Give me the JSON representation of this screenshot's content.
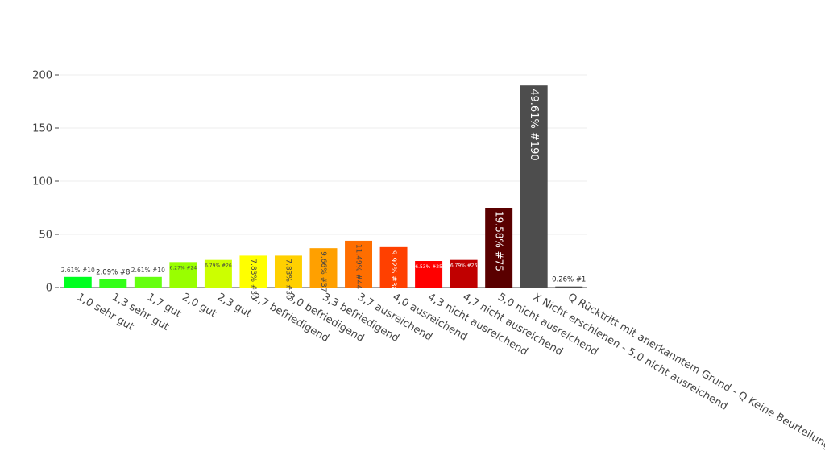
{
  "chart_data": {
    "type": "bar",
    "title": "",
    "xlabel": "",
    "ylabel": "",
    "ylim": [
      0,
      200
    ],
    "yticks": [
      0,
      50,
      100,
      150,
      200
    ],
    "grid": true,
    "legend": "none",
    "categories": [
      "1,0 sehr gut",
      "1,3 sehr gut",
      "1,7 gut",
      "2,0 gut",
      "2,3 gut",
      "2,7 befriedigend",
      "3,0 befriedigend",
      "3,3 befriedigend",
      "3,7 ausreichend",
      "4,0 ausreichend",
      "4,3 nicht ausreichend",
      "4,7 nicht ausreichend",
      "5,0 nicht ausreichend",
      "X Nicht erschienen - 5,0 nicht ausreichend",
      "Q Rücktritt mit anerkanntem Grund - Q Keine Beurteilung"
    ],
    "values": [
      10,
      8,
      10,
      24,
      26,
      30,
      30,
      37,
      44,
      38,
      25,
      26,
      75,
      190,
      1
    ],
    "data_labels": [
      "2.61% #10",
      "2.09% #8",
      "2.61% #10",
      "6.27% #24",
      "6.79% #26",
      "7.83% #30",
      "7.83% #30",
      "9.66% #37",
      "11.49% #44",
      "9.92% #38",
      "6.53% #25",
      "6.79% #26",
      "19.58% #75",
      "49.61% #190",
      "0.26% #1"
    ],
    "colors": [
      "#00ff20",
      "#33ff18",
      "#66ff10",
      "#99ff00",
      "#ccff00",
      "#ffff00",
      "#ffd000",
      "#ffa000",
      "#ff6e00",
      "#ff4000",
      "#ff0000",
      "#c00000",
      "#5a0000",
      "#4d4d4d",
      "#4d4d4d"
    ],
    "label_colors": [
      "#444444",
      "#222222",
      "#444444",
      "#444444",
      "#444444",
      "#444444",
      "#444444",
      "#444444",
      "#444444",
      "#ffffff",
      "#ffffff",
      "#ffffff",
      "#ffffff",
      "#ffffff",
      "#222222"
    ]
  }
}
